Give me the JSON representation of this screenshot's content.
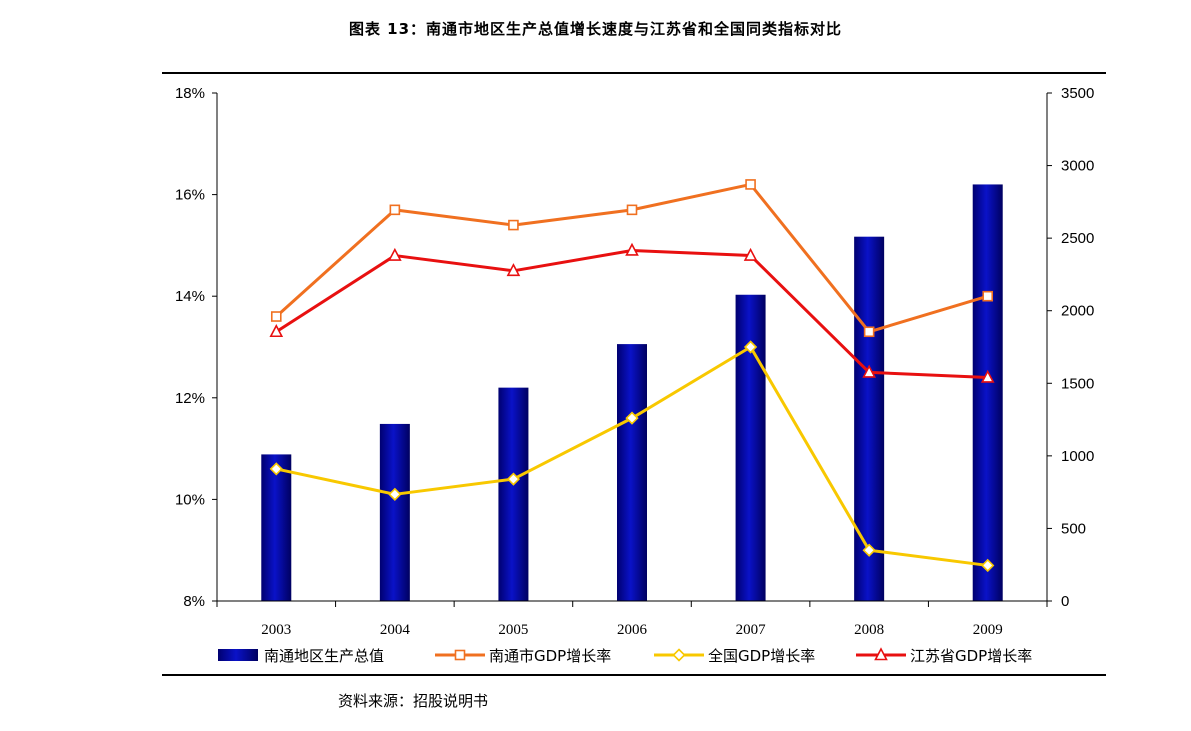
{
  "title": "图表 13：南通市地区生产总值增长速度与江苏省和全国同类指标对比",
  "source": "资料来源：招股说明书",
  "colors": {
    "bar": "#0a12c8",
    "nantong_line": "#f07020",
    "national_line": "#f8c800",
    "jiangsu_line": "#e81010"
  },
  "chart_data": {
    "type": "bar",
    "title": "图表 13：南通市地区生产总值增长速度与江苏省和全国同类指标对比",
    "categories": [
      "2003",
      "2004",
      "2005",
      "2006",
      "2007",
      "2008",
      "2009"
    ],
    "left_axis": {
      "ylim": [
        8,
        18
      ],
      "ticks": [
        "8%",
        "10%",
        "12%",
        "14%",
        "16%",
        "18%"
      ],
      "tick_values": [
        8,
        10,
        12,
        14,
        16,
        18
      ]
    },
    "right_axis": {
      "ylim": [
        0,
        3500
      ],
      "ticks": [
        "0",
        "500",
        "1000",
        "1500",
        "2000",
        "2500",
        "3000",
        "3500"
      ],
      "tick_values": [
        0,
        500,
        1000,
        1500,
        2000,
        2500,
        3000,
        3500
      ]
    },
    "series": [
      {
        "name": "南通地区生产总值",
        "type": "bar",
        "axis": "right",
        "values": [
          1010,
          1220,
          1470,
          1770,
          2110,
          2510,
          2870
        ]
      },
      {
        "name": "南通市GDP增长率",
        "type": "line",
        "axis": "left",
        "marker": "square",
        "values": [
          13.6,
          15.7,
          15.4,
          15.7,
          16.2,
          13.3,
          14.0
        ]
      },
      {
        "name": "全国GDP增长率",
        "type": "line",
        "axis": "left",
        "marker": "diamond",
        "values": [
          10.6,
          10.1,
          10.4,
          11.6,
          13.0,
          9.0,
          8.7
        ]
      },
      {
        "name": "江苏省GDP增长率",
        "type": "line",
        "axis": "left",
        "marker": "triangle",
        "values": [
          13.3,
          14.8,
          14.5,
          14.9,
          14.8,
          12.5,
          12.4
        ]
      }
    ],
    "legend": "bottom",
    "grid": false
  }
}
